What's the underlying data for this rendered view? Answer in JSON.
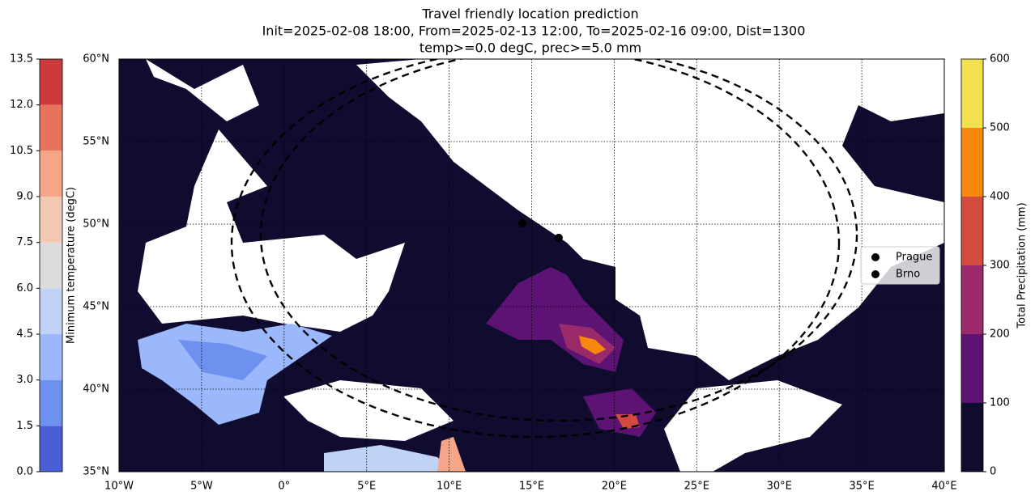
{
  "title": [
    "Travel friendly location prediction",
    "Init=2025-02-08 18:00, From=2025-02-13 12:00, To=2025-02-16 09:00, Dist=1300",
    "temp>=0.0 degC, prec>=5.0 mm"
  ],
  "map": {
    "xlim": [
      -10,
      40
    ],
    "ylim": [
      35,
      60
    ],
    "xticks": [
      {
        "value": -10,
        "label": "10°W"
      },
      {
        "value": -5,
        "label": "5°W"
      },
      {
        "value": 0,
        "label": "0°"
      },
      {
        "value": 5,
        "label": "5°E"
      },
      {
        "value": 10,
        "label": "10°E"
      },
      {
        "value": 15,
        "label": "15°E"
      },
      {
        "value": 20,
        "label": "20°E"
      },
      {
        "value": 25,
        "label": "25°E"
      },
      {
        "value": 30,
        "label": "30°E"
      },
      {
        "value": 35,
        "label": "35°E"
      },
      {
        "value": 40,
        "label": "40°E"
      }
    ],
    "yticks": [
      {
        "value": 35,
        "label": "35°N"
      },
      {
        "value": 40,
        "label": "40°N"
      },
      {
        "value": 45,
        "label": "45°N"
      },
      {
        "value": 50,
        "label": "50°N"
      },
      {
        "value": 55,
        "label": "55°N"
      },
      {
        "value": 60,
        "label": "60°N"
      }
    ],
    "grid": true,
    "points": [
      {
        "name": "Prague",
        "lon": 14.43,
        "lat": 50.05,
        "color": "#000000"
      },
      {
        "name": "Brno",
        "lon": 16.64,
        "lat": 49.17,
        "color": "#000000"
      }
    ],
    "legend": "right"
  },
  "temp_colorbar": {
    "label": "Minimum temperature (degC)",
    "lim": [
      0,
      13.5
    ],
    "ticks": [
      {
        "value": 0,
        "label": "0.0"
      },
      1.5,
      {
        "value": 3,
        "label": "3.0"
      },
      4.5,
      {
        "value": 6,
        "label": "6.0"
      },
      7.5,
      {
        "value": 9,
        "label": "9.0"
      },
      10.5,
      {
        "value": 12,
        "label": "12.0"
      },
      13.5
    ],
    "colors": [
      "#4b5fd5",
      "#6e90ee",
      "#9ab8fb",
      "#c0d3f6",
      "#dcdcdc",
      "#f3c8b2",
      "#f5a588",
      "#e8735c",
      "#cc3b3c"
    ]
  },
  "prec_colorbar": {
    "label": "Total Precipitation (mm)",
    "lim": [
      0,
      600
    ],
    "ticks": [
      0,
      100,
      200,
      300,
      400,
      500,
      600
    ],
    "colors": [
      "#100c2f",
      "#5c1373",
      "#9b2a6b",
      "#d34a3e",
      "#f8880d",
      "#f2e04f"
    ]
  }
}
